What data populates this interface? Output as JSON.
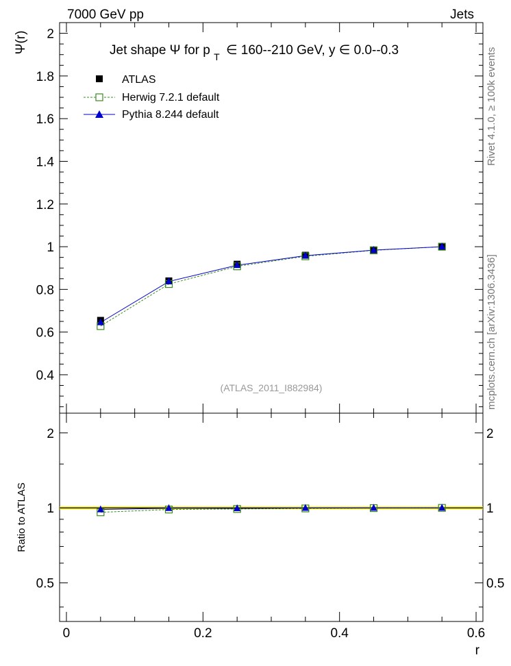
{
  "header": {
    "left": "7000 GeV pp",
    "right": "Jets"
  },
  "side_labels": {
    "rivet": "Rivet 4.1.0, ≥ 100k events",
    "mcplots": "mcplots.cern.ch [arXiv:1306.3436]"
  },
  "watermark": "(ATLAS_2011_I882984)",
  "chart_data": [
    {
      "type": "line",
      "panel": "main",
      "title_parts": {
        "prefix": "Jet shape  Ψ for p",
        "sub": "T",
        "middle": "∈ 160--210 GeV, y  ∈ 0.0--0.3"
      },
      "xlabel": "r",
      "ylabel": "Ψ(r)",
      "xlim": [
        -0.01,
        0.61
      ],
      "ylim": [
        0.22,
        2.05
      ],
      "xticks": [
        0,
        0.2,
        0.4,
        0.6
      ],
      "xtick_labels": [
        "0",
        "0.2",
        "0.4",
        "0.6"
      ],
      "yticks": [
        0.4,
        0.6,
        0.8,
        1.0,
        1.2,
        1.4,
        1.6,
        1.8,
        2.0
      ],
      "ytick_labels": [
        "0.4",
        "0.6",
        "0.8",
        "1",
        "1.2",
        "1.4",
        "1.6",
        "1.8",
        "2"
      ],
      "x": [
        0.05,
        0.15,
        0.25,
        0.35,
        0.45,
        0.55
      ],
      "series": [
        {
          "name": "ATLAS",
          "marker": "square-filled",
          "color": "#000000",
          "values": [
            0.655,
            0.84,
            0.918,
            0.96,
            0.985,
            1.0
          ]
        },
        {
          "name": "Herwig 7.2.1 default",
          "marker": "square-open",
          "color": "#3a8a1e",
          "line": "dashed",
          "values": [
            0.628,
            0.825,
            0.908,
            0.955,
            0.983,
            1.0
          ]
        },
        {
          "name": "Pythia 8.244 default",
          "marker": "triangle",
          "color": "#0000cc",
          "line": "solid",
          "values": [
            0.645,
            0.837,
            0.913,
            0.958,
            0.984,
            1.0
          ]
        }
      ],
      "legend": "top-left"
    },
    {
      "type": "line",
      "panel": "ratio",
      "ylabel": "Ratio to ATLAS",
      "ylim": [
        0.35,
        2.4
      ],
      "yticks": [
        0.5,
        1,
        2
      ],
      "ytick_labels": [
        "0.5",
        "1",
        "2"
      ],
      "x": [
        0.05,
        0.15,
        0.25,
        0.35,
        0.45,
        0.55
      ],
      "series": [
        {
          "name": "Herwig 7.2.1 default",
          "values": [
            0.96,
            0.985,
            0.99,
            0.995,
            0.998,
            1.0
          ]
        },
        {
          "name": "Pythia 8.244 default",
          "values": [
            0.985,
            0.997,
            0.995,
            0.998,
            0.999,
            1.0
          ]
        }
      ]
    }
  ]
}
